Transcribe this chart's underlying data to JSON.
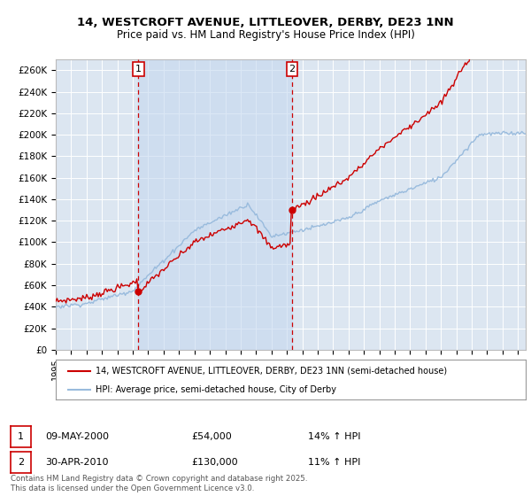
{
  "title1": "14, WESTCROFT AVENUE, LITTLEOVER, DERBY, DE23 1NN",
  "title2": "Price paid vs. HM Land Registry's House Price Index (HPI)",
  "ylabel_ticks": [
    "£0",
    "£20K",
    "£40K",
    "£60K",
    "£80K",
    "£100K",
    "£120K",
    "£140K",
    "£160K",
    "£180K",
    "£200K",
    "£220K",
    "£240K",
    "£260K"
  ],
  "ytick_values": [
    0,
    20000,
    40000,
    60000,
    80000,
    100000,
    120000,
    140000,
    160000,
    180000,
    200000,
    220000,
    240000,
    260000
  ],
  "xlim_start": 1995.0,
  "xlim_end": 2025.5,
  "ylim_min": 0,
  "ylim_max": 270000,
  "background_color": "#dce6f1",
  "grid_color": "#ffffff",
  "red_line_color": "#cc0000",
  "blue_line_color": "#99bbdd",
  "shade_color": "#c5d8ef",
  "marker1_date": 2000.36,
  "marker1_value": 54000,
  "marker2_date": 2010.33,
  "marker2_value": 130000,
  "legend1": "14, WESTCROFT AVENUE, LITTLEOVER, DERBY, DE23 1NN (semi-detached house)",
  "legend2": "HPI: Average price, semi-detached house, City of Derby",
  "ann1_label": "1",
  "ann1_date": "09-MAY-2000",
  "ann1_price": "£54,000",
  "ann1_hpi": "14% ↑ HPI",
  "ann2_label": "2",
  "ann2_date": "30-APR-2010",
  "ann2_price": "£130,000",
  "ann2_hpi": "11% ↑ HPI",
  "footer": "Contains HM Land Registry data © Crown copyright and database right 2025.\nThis data is licensed under the Open Government Licence v3.0."
}
